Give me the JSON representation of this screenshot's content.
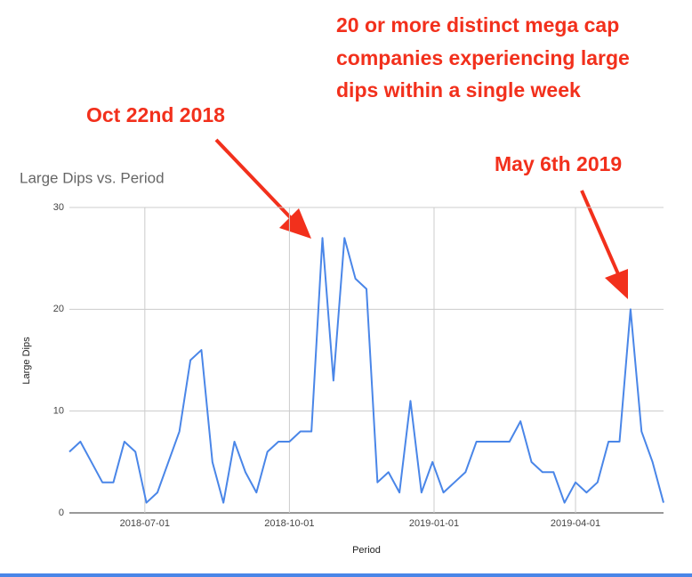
{
  "chart_data": {
    "type": "line",
    "title": "Large Dips vs. Period",
    "x_label": "Period",
    "y_label": "Large Dips",
    "annotations": [
      "Oct 22nd 2018",
      "May 6th 2019"
    ],
    "note_lines": [
      "20 or more distinct mega cap",
      "companies experiencing large",
      "dips within a single week"
    ],
    "x": [
      "2018-05-14",
      "2018-05-21",
      "2018-05-28",
      "2018-06-04",
      "2018-06-11",
      "2018-06-18",
      "2018-06-25",
      "2018-07-02",
      "2018-07-09",
      "2018-07-16",
      "2018-07-23",
      "2018-07-30",
      "2018-08-06",
      "2018-08-13",
      "2018-08-20",
      "2018-08-27",
      "2018-09-03",
      "2018-09-10",
      "2018-09-17",
      "2018-09-24",
      "2018-10-01",
      "2018-10-08",
      "2018-10-15",
      "2018-10-22",
      "2018-10-29",
      "2018-11-05",
      "2018-11-12",
      "2018-11-19",
      "2018-11-26",
      "2018-12-03",
      "2018-12-10",
      "2018-12-17",
      "2018-12-24",
      "2018-12-31",
      "2019-01-07",
      "2019-01-14",
      "2019-01-21",
      "2019-01-28",
      "2019-02-04",
      "2019-02-11",
      "2019-02-18",
      "2019-02-25",
      "2019-03-04",
      "2019-03-11",
      "2019-03-18",
      "2019-03-25",
      "2019-04-01",
      "2019-04-08",
      "2019-04-15",
      "2019-04-22",
      "2019-04-29",
      "2019-05-06",
      "2019-05-13",
      "2019-05-20",
      "2019-05-27"
    ],
    "series": [
      {
        "name": "Large Dips",
        "color": "#4a86e8",
        "values": [
          6,
          7,
          5,
          3,
          3,
          7,
          6,
          1,
          2,
          5,
          8,
          15,
          16,
          5,
          1,
          7,
          4,
          2,
          6,
          7,
          7,
          8,
          8,
          27,
          13,
          27,
          23,
          22,
          3,
          4,
          2,
          11,
          2,
          5,
          2,
          3,
          4,
          7,
          7,
          7,
          7,
          9,
          5,
          4,
          4,
          1,
          3,
          2,
          3,
          7,
          7,
          20,
          8,
          5,
          1
        ]
      }
    ],
    "xlim": [
      "2018-05-14",
      "2019-05-27"
    ],
    "xticks": [
      "2018-07-01",
      "2018-10-01",
      "2019-01-01",
      "2019-04-01"
    ],
    "ylim": [
      0,
      30
    ],
    "yticks": [
      0,
      10,
      20,
      30
    ],
    "grid": true
  }
}
